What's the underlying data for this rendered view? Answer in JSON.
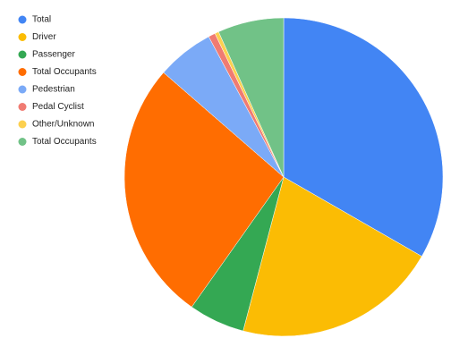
{
  "chart_data": {
    "type": "pie",
    "categories": [
      "Total",
      "Driver",
      "Passenger",
      "Total Occupants",
      "Pedestrian",
      "Pedal Cyclist",
      "Other/Unknown",
      "Total Occupants"
    ],
    "values": [
      33.3,
      20.8,
      5.7,
      26.6,
      5.8,
      0.7,
      0.4,
      6.7
    ],
    "colors": [
      "#4285f4",
      "#fbbc04",
      "#34a853",
      "#ff6d01",
      "#7baaf7",
      "#f07b72",
      "#fcd04f",
      "#71c287"
    ],
    "legend": "left"
  }
}
